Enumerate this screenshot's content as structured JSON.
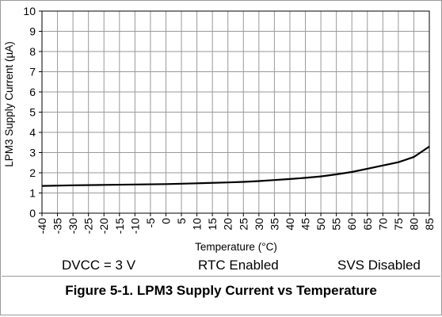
{
  "chart_data": {
    "type": "line",
    "title": "",
    "xlabel": "Temperature (°C)",
    "ylabel": "LPM3 Supply Current (µA)",
    "xlim": [
      -40,
      85
    ],
    "ylim": [
      0,
      10
    ],
    "x_ticks": [
      -40,
      -35,
      -30,
      -25,
      -20,
      -15,
      -10,
      -5,
      0,
      5,
      10,
      15,
      20,
      25,
      30,
      35,
      40,
      45,
      50,
      55,
      60,
      65,
      70,
      75,
      80,
      85
    ],
    "y_ticks": [
      0,
      1,
      2,
      3,
      4,
      5,
      6,
      7,
      8,
      9,
      10
    ],
    "grid": true,
    "line_color": "#000000",
    "series": [
      {
        "x": [
          -40,
          -30,
          -20,
          -10,
          0,
          10,
          20,
          25,
          30,
          35,
          40,
          45,
          50,
          55,
          60,
          65,
          70,
          75,
          80,
          85
        ],
        "values": [
          1.35,
          1.38,
          1.4,
          1.42,
          1.44,
          1.48,
          1.52,
          1.55,
          1.59,
          1.64,
          1.69,
          1.75,
          1.82,
          1.92,
          2.04,
          2.2,
          2.36,
          2.52,
          2.78,
          3.3
        ]
      }
    ]
  },
  "conditions": {
    "dvcc": "DVCC = 3 V",
    "rtc": "RTC Enabled",
    "svs": "SVS Disabled"
  },
  "caption": "Figure 5-1. LPM3 Supply Current vs Temperature"
}
